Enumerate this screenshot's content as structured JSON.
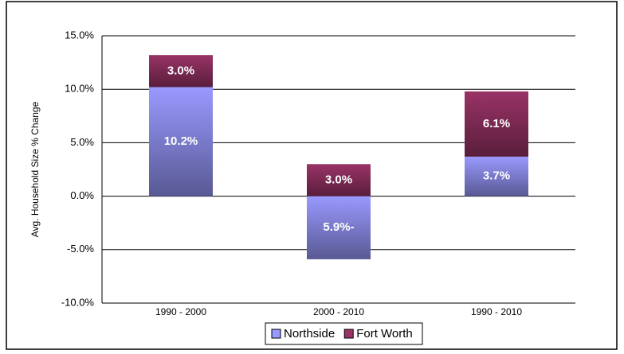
{
  "chart_data": {
    "type": "stacked_bar",
    "y_label": "Avg. Household Size % Change",
    "categories": [
      "1990 - 2000",
      "2000 - 2010",
      "1990 - 2010"
    ],
    "series": [
      {
        "name": "Northside",
        "color": "#9999ff",
        "values": [
          10.2,
          -5.9,
          3.7
        ],
        "value_labels": [
          "10.2%",
          "5.9%-",
          "3.7%"
        ]
      },
      {
        "name": "Fort Worth",
        "color": "#993366",
        "values": [
          3.0,
          3.0,
          6.1
        ],
        "value_labels": [
          "3.0%",
          "3.0%",
          "6.1%"
        ]
      }
    ],
    "ylim": [
      -10,
      15
    ],
    "yticks": [
      {
        "value": -10,
        "label": "-10.0%"
      },
      {
        "value": -5,
        "label": "-5.0%"
      },
      {
        "value": 0,
        "label": "0.0%"
      },
      {
        "value": 5,
        "label": "5.0%"
      },
      {
        "value": 10,
        "label": "10.0%"
      },
      {
        "value": 15,
        "label": "15.0%"
      }
    ],
    "grid": true,
    "legend": "bottom"
  }
}
